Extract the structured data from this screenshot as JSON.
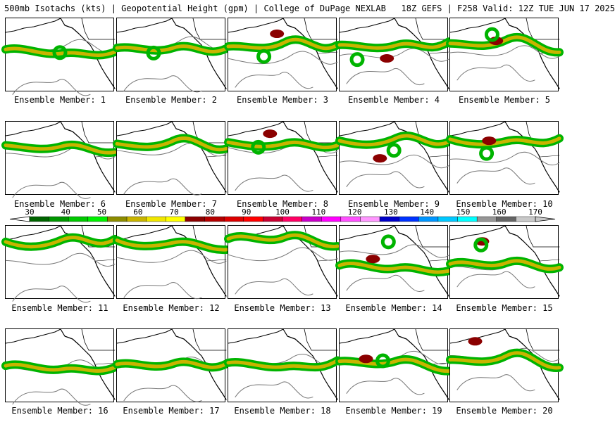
{
  "header": {
    "left": "500mb Isotachs (kts) | Geopotential Height (gpm) | College of DuPage NEXLAB",
    "right": "18Z GEFS | F258 Valid: 12Z TUE JUN 17 2025"
  },
  "panels": [
    {
      "label": "Ensemble Member: 1"
    },
    {
      "label": "Ensemble Member: 2"
    },
    {
      "label": "Ensemble Member: 3"
    },
    {
      "label": "Ensemble Member: 4"
    },
    {
      "label": "Ensemble Member: 5"
    },
    {
      "label": "Ensemble Member: 6"
    },
    {
      "label": "Ensemble Member: 7"
    },
    {
      "label": "Ensemble Member: 8"
    },
    {
      "label": "Ensemble Member: 9"
    },
    {
      "label": "Ensemble Member: 10"
    },
    {
      "label": "Ensemble Member: 11"
    },
    {
      "label": "Ensemble Member: 12"
    },
    {
      "label": "Ensemble Member: 13"
    },
    {
      "label": "Ensemble Member: 14"
    },
    {
      "label": "Ensemble Member: 15"
    },
    {
      "label": "Ensemble Member: 16"
    },
    {
      "label": "Ensemble Member: 17"
    },
    {
      "label": "Ensemble Member: 18"
    },
    {
      "label": "Ensemble Member: 19"
    },
    {
      "label": "Ensemble Member: 20"
    }
  ],
  "colorbar": {
    "ticks": [
      "30",
      "40",
      "50",
      "60",
      "70",
      "80",
      "90",
      "100",
      "110",
      "120",
      "130",
      "140",
      "150",
      "160",
      "170"
    ],
    "colors": [
      "#006400",
      "#009600",
      "#00c800",
      "#00f000",
      "#8c8c00",
      "#c8b400",
      "#f0e600",
      "#ffff00",
      "#8b0000",
      "#b40000",
      "#dc0000",
      "#ff0000",
      "#c80032",
      "#ff0064",
      "#c800c8",
      "#ff00ff",
      "#ff50ff",
      "#ff96ff",
      "#0000c8",
      "#0032ff",
      "#0096ff",
      "#00c8ff",
      "#00ffff",
      "#969696",
      "#646464",
      "#c8c8c8"
    ]
  },
  "colors": {
    "background": "#ffffff",
    "coastline": "#000000",
    "height_contour": "#777777",
    "jet_low": "#00b400",
    "jet_mid": "#c8b400",
    "jet_core": "#8b0000"
  }
}
